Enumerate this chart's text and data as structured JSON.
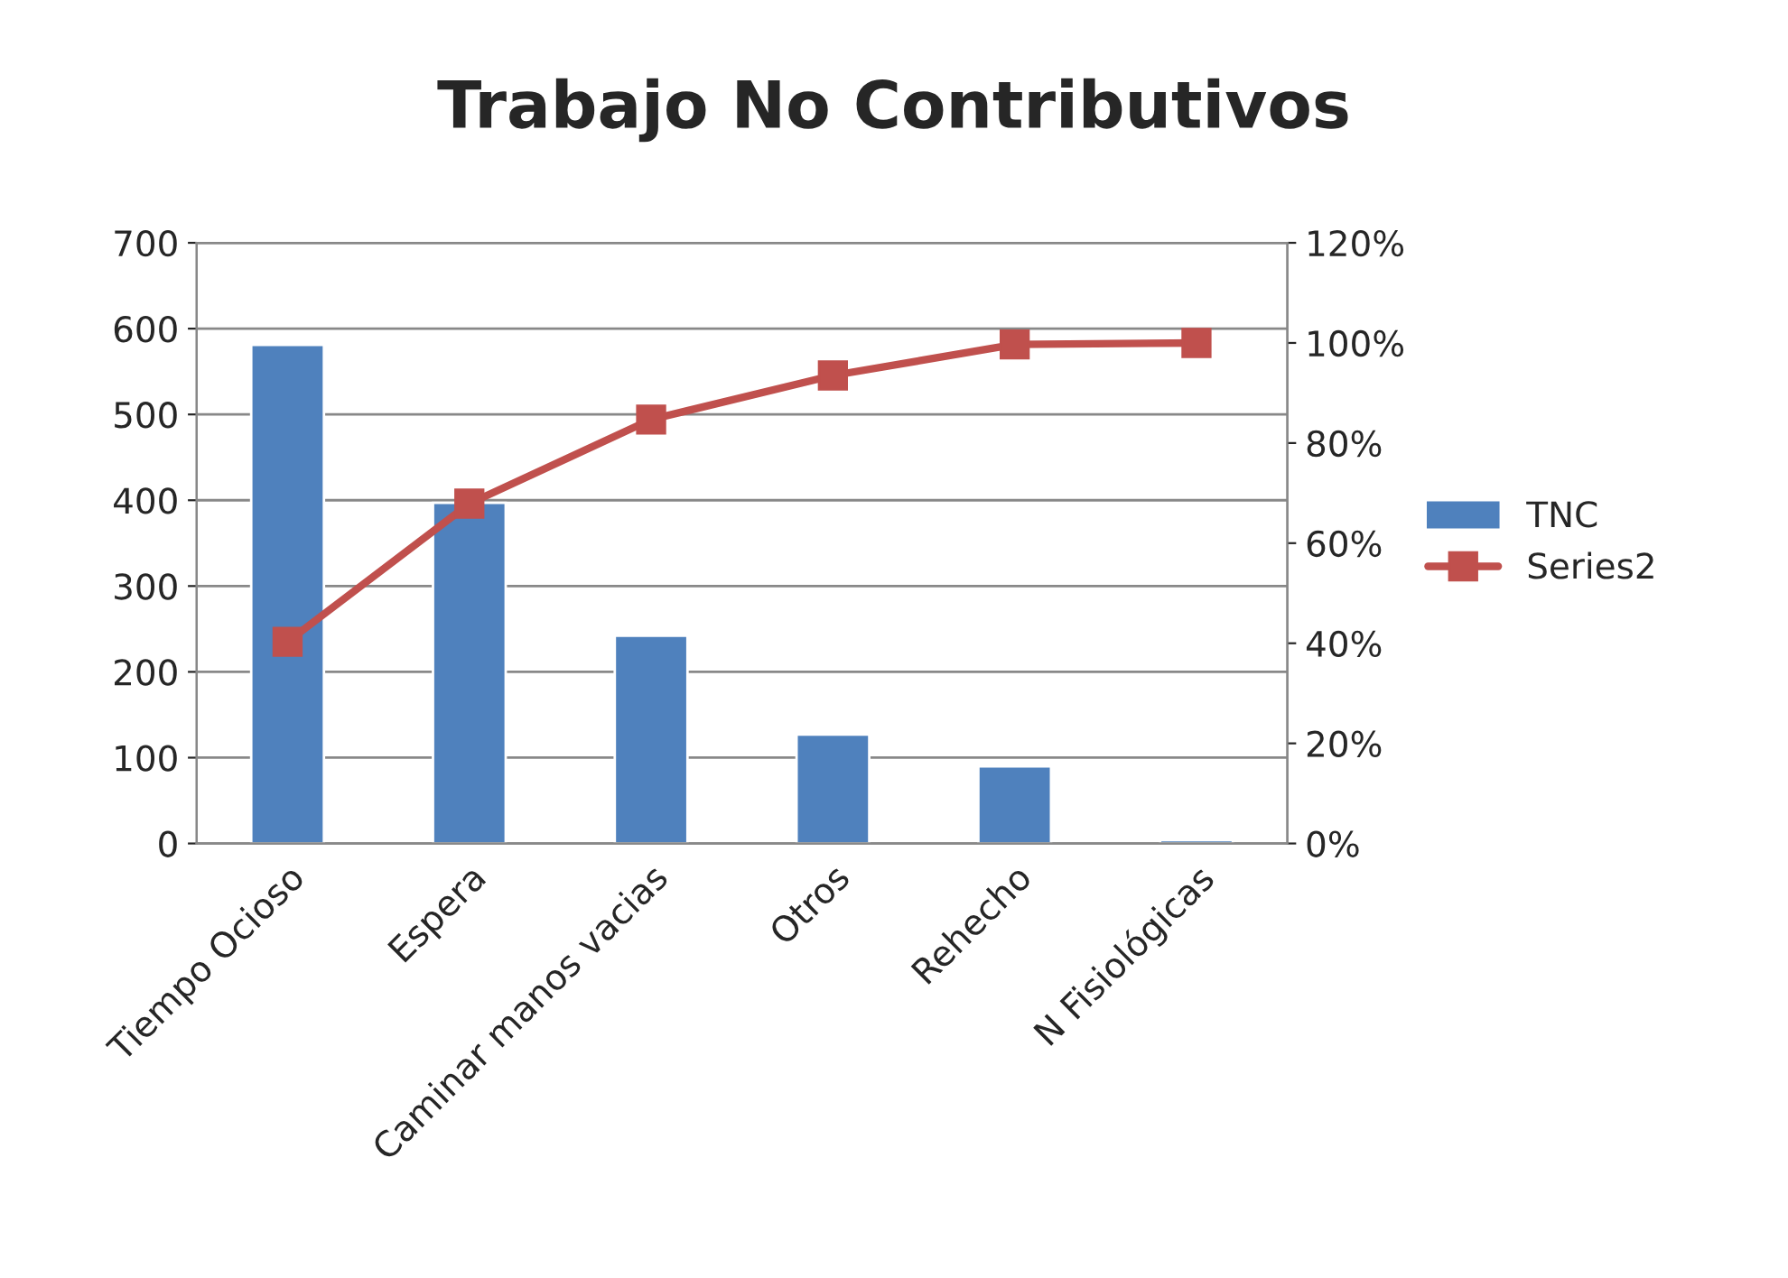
{
  "chart_data": {
    "type": "bar",
    "title": "Trabajo No Contributivos",
    "categories": [
      "Tiempo Ocioso",
      "Espera",
      "Caminar manos vacias",
      "Otros",
      "Rehecho",
      "N Fisiológicas"
    ],
    "series": [
      {
        "name": "TNC",
        "color": "#4f81bd",
        "values": [
          581,
          397,
          242,
          127,
          90,
          4
        ]
      },
      {
        "name": "Series2",
        "type": "line",
        "axis": "y2",
        "color": "#c0504d",
        "marker": "square",
        "values": [
          40.3,
          67.9,
          84.7,
          93.5,
          99.7,
          100
        ]
      }
    ],
    "ylim": [
      0,
      700
    ],
    "yticks": [
      0,
      100,
      200,
      300,
      400,
      500,
      600,
      700
    ],
    "y2lim": [
      0,
      120
    ],
    "y2ticks": [
      {
        "value": 0,
        "label": "0%"
      },
      {
        "value": 20,
        "label": "20%"
      },
      {
        "value": 40,
        "label": "40%"
      },
      {
        "value": 60,
        "label": "60%"
      },
      {
        "value": 80,
        "label": "80%"
      },
      {
        "value": 100,
        "label": "100%"
      },
      {
        "value": 120,
        "label": "120%"
      }
    ],
    "grid": "y",
    "legend": "right"
  }
}
